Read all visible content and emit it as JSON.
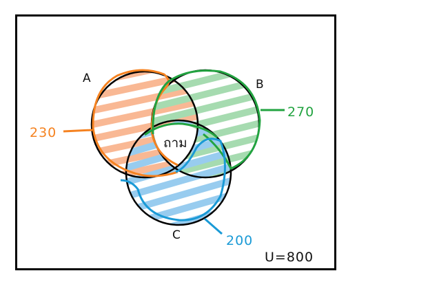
{
  "diagram": {
    "type": "venn",
    "sets": [
      {
        "label": "A",
        "count": "230",
        "color": "#f58220",
        "hatch": "#f9b894"
      },
      {
        "label": "B",
        "count": "270",
        "color": "#22a340",
        "hatch": "#a6dbb0"
      },
      {
        "label": "C",
        "count": "200",
        "color": "#1a9ad6",
        "hatch": "#98ccef"
      }
    ],
    "center_label": "ถาม",
    "universe": "U=800"
  }
}
